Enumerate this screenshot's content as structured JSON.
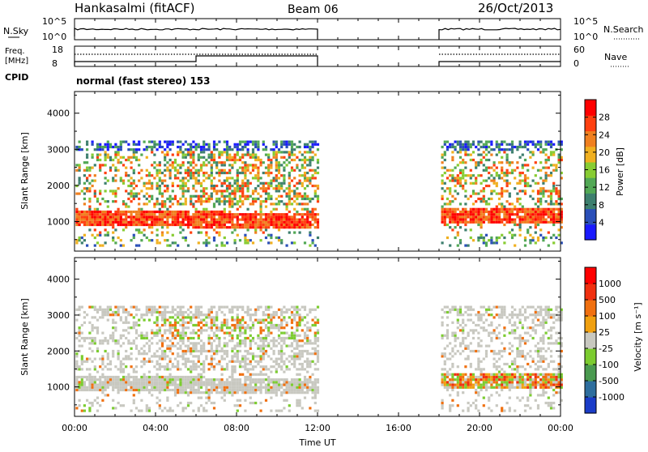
{
  "header": {
    "station": "Hankasalmi (fitACF)",
    "beam": "Beam 06",
    "date": "26/Oct/2013"
  },
  "noise_panel": {
    "left_label": "N.Sky",
    "left_ticks": [
      "10^5",
      "10^0"
    ],
    "right_label": "N.Search",
    "right_ticks": [
      "10^5",
      "10^0"
    ]
  },
  "freq_panel": {
    "left_label_1": "Freq.",
    "left_label_2": "[MHz]",
    "left_ticks": [
      "18",
      "8"
    ],
    "right_label": "Nave",
    "right_ticks": [
      "60",
      "0"
    ],
    "cpid_label": "CPID",
    "cpid_value": "normal (fast stereo) 153"
  },
  "chart_data": [
    {
      "type": "heatmap",
      "name": "power",
      "ylabel": "Slant Range [km]",
      "ylim": [
        180,
        4600
      ],
      "yticks": [
        "1000",
        "2000",
        "3000",
        "4000"
      ],
      "xlim_hours": [
        0,
        24
      ],
      "colorbar_label": "Power [dB]",
      "colorbar_ticks": [
        "28",
        "24",
        "20",
        "16",
        "12",
        "8",
        "4"
      ],
      "colors": [
        "#1a1aff",
        "#2a4fb8",
        "#3d7f6e",
        "#52a855",
        "#88cc33",
        "#f0b020",
        "#f08020",
        "#ff4010",
        "#ff0000"
      ],
      "data_gaps_hours": [
        [
          12,
          18
        ]
      ]
    },
    {
      "type": "heatmap",
      "name": "velocity",
      "ylabel": "Slant Range [km]",
      "ylim": [
        180,
        4600
      ],
      "yticks": [
        "1000",
        "2000",
        "3000",
        "4000"
      ],
      "xlim_hours": [
        0,
        24
      ],
      "colorbar_label": "Velocity [m s⁻¹]",
      "colorbar_ticks": [
        "1000",
        "500",
        "100",
        "25",
        "-25",
        "-100",
        "-500",
        "-1000"
      ],
      "colors": [
        "#1a3cc8",
        "#2e6e9e",
        "#4a9a50",
        "#7ccc30",
        "#c8c8c0",
        "#f0a010",
        "#f07010",
        "#f03010",
        "#ff0000"
      ],
      "data_gaps_hours": [
        [
          12,
          18
        ]
      ]
    }
  ],
  "time_axis": {
    "ticks": [
      "00:00",
      "04:00",
      "08:00",
      "12:00",
      "16:00",
      "20:00",
      "00:00"
    ],
    "label": "Time UT"
  }
}
